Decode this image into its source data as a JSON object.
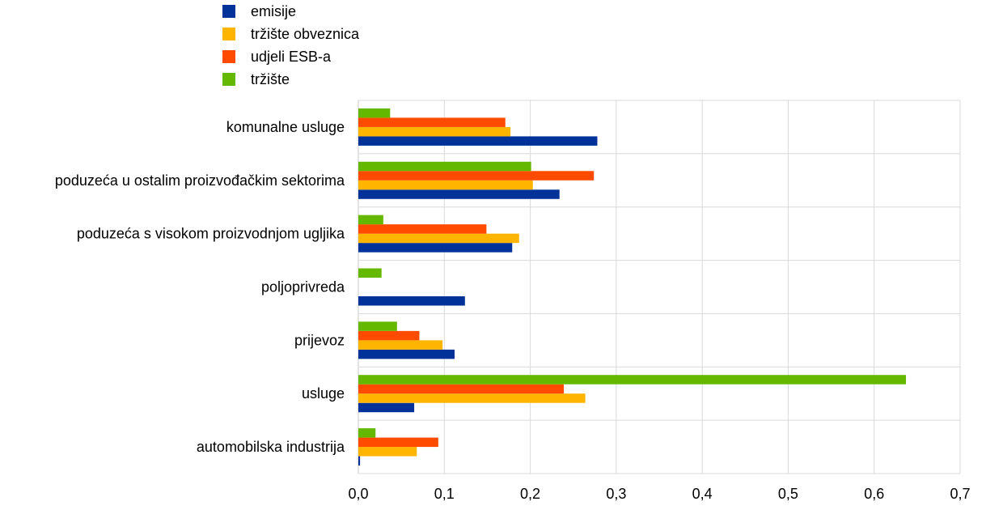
{
  "chart_data": {
    "type": "bar",
    "orientation": "horizontal",
    "title": "",
    "xlabel": "",
    "ylabel": "",
    "xlim": [
      0,
      0.7
    ],
    "x_ticks": [
      "0,0",
      "0,1",
      "0,2",
      "0,3",
      "0,4",
      "0,5",
      "0,6",
      "0,7"
    ],
    "grid": true,
    "legend_position": "top-left",
    "categories": [
      "komunalne usluge",
      "poduzeća u ostalim proizvođačkim sektorima",
      "poduzeća s visokom proizvodnjom ugljika",
      "poljoprivreda",
      "prijevoz",
      "usluge",
      "automobilska industrija"
    ],
    "series": [
      {
        "name": "emisije",
        "color": "#003299",
        "values": [
          0.278,
          0.234,
          0.179,
          0.124,
          0.112,
          0.065,
          0.002
        ]
      },
      {
        "name": "tržište obveznica",
        "color": "#ffb400",
        "values": [
          0.177,
          0.203,
          0.187,
          0.0,
          0.098,
          0.264,
          0.068
        ]
      },
      {
        "name": "udjeli ESB-a",
        "color": "#ff4b00",
        "values": [
          0.171,
          0.274,
          0.149,
          0.0,
          0.071,
          0.239,
          0.093
        ]
      },
      {
        "name": "tržište",
        "color": "#65b800",
        "values": [
          0.037,
          0.201,
          0.029,
          0.027,
          0.045,
          0.637,
          0.02
        ]
      }
    ]
  }
}
